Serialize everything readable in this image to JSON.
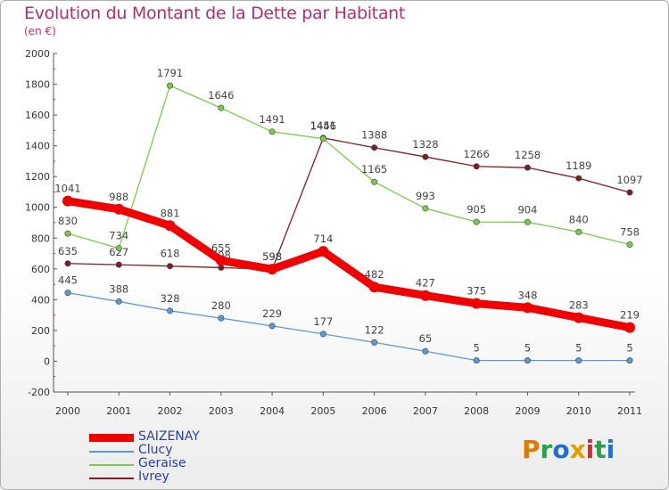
{
  "header": {
    "title": "Evolution du Montant de la Dette par Habitant",
    "subtitle": "(en €)"
  },
  "brand": {
    "letters": [
      "P",
      "r",
      "o",
      "x",
      "i",
      "t",
      "i"
    ],
    "colors": [
      "#e07b00",
      "#2aa24b",
      "#1e6fd0",
      "#e0a000",
      "#d03030",
      "#2aa24b",
      "#1e6fd0"
    ]
  },
  "chart_data": {
    "type": "line",
    "title": "Evolution du Montant de la Dette par Habitant",
    "subtitle": "(en €)",
    "x": [
      "2000",
      "2001",
      "2002",
      "2003",
      "2004",
      "2005",
      "2006",
      "2007",
      "2008",
      "2009",
      "2010",
      "2011"
    ],
    "ylim": [
      -200,
      2000
    ],
    "yticks": [
      "-200",
      "0",
      "200",
      "400",
      "600",
      "800",
      "1000",
      "1200",
      "1400",
      "1600",
      "1800",
      "2000"
    ],
    "grid": false,
    "legend_position": "bottom-left",
    "series": [
      {
        "name": "Ivrey",
        "color": "#7a1f25",
        "values": [
          635,
          627,
          618,
          608,
          598,
          1451,
          1388,
          1328,
          1266,
          1258,
          1189,
          1097
        ]
      },
      {
        "name": "Geraise",
        "color": "#7ec850",
        "values": [
          830,
          734,
          1791,
          1646,
          1491,
          1446,
          1165,
          993,
          905,
          904,
          840,
          758
        ]
      },
      {
        "name": "Clucy",
        "color": "#5a9bd5",
        "values": [
          445,
          388,
          328,
          280,
          229,
          177,
          122,
          65,
          5,
          5,
          5,
          5
        ]
      },
      {
        "name": "SAIZENAY",
        "color": "#f00000",
        "values": [
          1041,
          988,
          881,
          655,
          598,
          714,
          482,
          427,
          375,
          348,
          283,
          219
        ]
      }
    ]
  }
}
